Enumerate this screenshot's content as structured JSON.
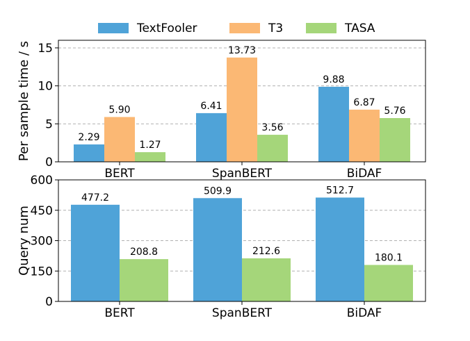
{
  "chart_data": [
    {
      "type": "bar",
      "categories": [
        "BERT",
        "SpanBERT",
        "BiDAF"
      ],
      "ylabel": "Per sample time / s",
      "ylim": [
        0,
        16
      ],
      "yticks": [
        0,
        5,
        10,
        15
      ],
      "grid": true,
      "series": [
        {
          "name": "TextFooler",
          "values": [
            2.29,
            6.41,
            9.88
          ],
          "labels": [
            "2.29",
            "6.41",
            "9.88"
          ]
        },
        {
          "name": "T3",
          "values": [
            5.9,
            13.73,
            6.87
          ],
          "labels": [
            "5.90",
            "13.73",
            "6.87"
          ]
        },
        {
          "name": "TASA",
          "values": [
            1.27,
            3.56,
            5.76
          ],
          "labels": [
            "1.27",
            "3.56",
            "5.76"
          ]
        }
      ]
    },
    {
      "type": "bar",
      "categories": [
        "BERT",
        "SpanBERT",
        "BiDAF"
      ],
      "ylabel": "Query num",
      "ylim": [
        0,
        600
      ],
      "yticks": [
        0,
        150,
        300,
        450,
        600
      ],
      "grid": true,
      "series": [
        {
          "name": "TextFooler",
          "values": [
            477.2,
            509.9,
            512.7
          ],
          "labels": [
            "477.2",
            "509.9",
            "512.7"
          ]
        },
        {
          "name": "TASA",
          "values": [
            208.8,
            212.6,
            180.1
          ],
          "labels": [
            "208.8",
            "212.6",
            "180.1"
          ]
        }
      ]
    }
  ],
  "legend": {
    "placement": "top-center",
    "items": [
      {
        "label": "TextFooler",
        "color": "#4fa3d8"
      },
      {
        "label": "T3",
        "color": "#fbb874"
      },
      {
        "label": "TASA",
        "color": "#a5d67a"
      }
    ]
  }
}
